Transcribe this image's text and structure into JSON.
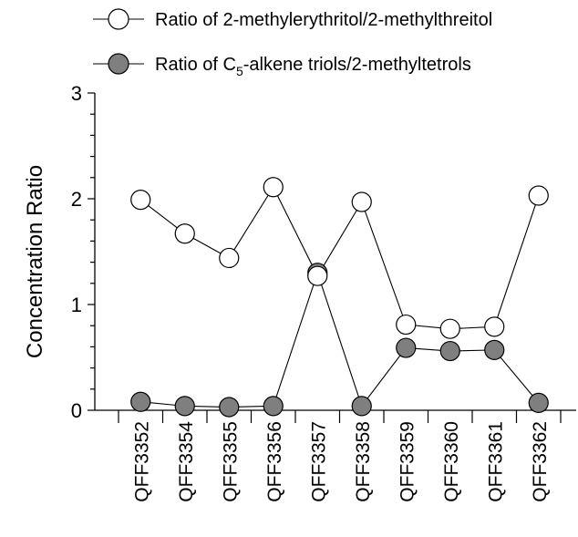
{
  "chart_data": {
    "type": "line",
    "xlabel": "",
    "ylabel": "Concentration Ratio",
    "ylim": [
      0,
      3
    ],
    "yticks": [
      "0",
      "1",
      "2",
      "3"
    ],
    "grid": false,
    "legend_position": "top",
    "categories": [
      "QFF3352",
      "QFF3354",
      "QFF3355",
      "QFF3356",
      "QFF3357",
      "QFF3358",
      "QFF3359",
      "QFF3360",
      "QFF3361",
      "QFF3362"
    ],
    "series": [
      {
        "name": "Ratio of 2-methylerythritol/2-methylthreitol",
        "marker": "open-circle",
        "fill": "#ffffff",
        "values": [
          1.99,
          1.67,
          1.44,
          2.11,
          1.27,
          1.97,
          0.81,
          0.77,
          0.79,
          2.03
        ]
      },
      {
        "name_prefix": "Ratio of C",
        "name_subscript": "5",
        "name_suffix": "-alkene triols/2-methyltetrols",
        "marker": "filled-circle",
        "fill": "#7f7f7f",
        "values": [
          0.08,
          0.04,
          0.03,
          0.04,
          1.3,
          0.04,
          0.59,
          0.56,
          0.57,
          0.07
        ]
      }
    ]
  }
}
